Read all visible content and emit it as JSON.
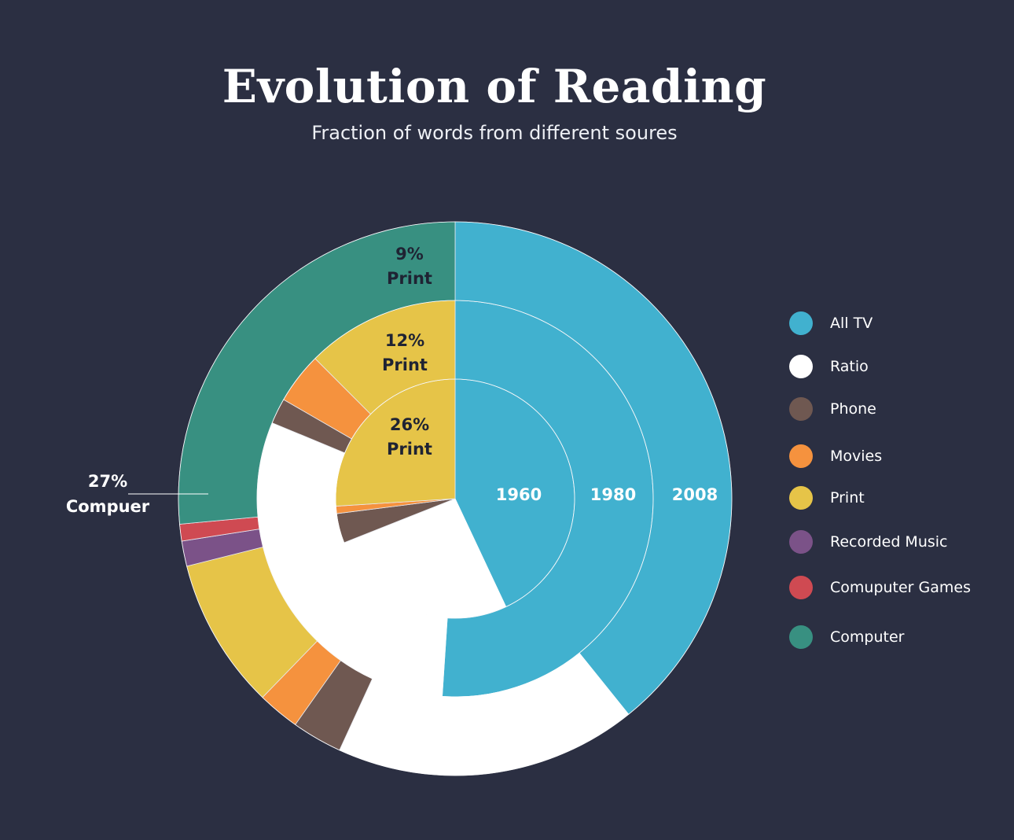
{
  "title": "Evolution of Reading",
  "subtitle": "Fraction of words from different soures",
  "legend": [
    {
      "label": "All TV",
      "color": "#41b1cf"
    },
    {
      "label": "Ratio",
      "color": "#ffffff"
    },
    {
      "label": "Phone",
      "color": "#6f5851"
    },
    {
      "label": "Movies",
      "color": "#f5923e"
    },
    {
      "label": "Print",
      "color": "#e6c448"
    },
    {
      "label": "Recorded Music",
      "color": "#7b5288"
    },
    {
      "label": "Comuputer Games",
      "color": "#cf4a52"
    },
    {
      "label": "Computer",
      "color": "#389081"
    }
  ],
  "chart_data": {
    "type": "pie",
    "subtype": "nested-donut",
    "categories": [
      "All TV",
      "Ratio",
      "Phone",
      "Movies",
      "Print",
      "Recorded Music",
      "Comuputer Games",
      "Computer"
    ],
    "series": [
      {
        "name": "1960",
        "values": [
          43,
          26,
          4,
          1,
          26,
          0,
          0,
          0
        ]
      },
      {
        "name": "1980",
        "values": [
          49,
          29,
          2,
          4,
          12,
          0,
          0,
          0
        ]
      },
      {
        "name": "2008",
        "values": [
          40,
          18,
          3,
          2.5,
          9,
          1.5,
          1,
          27
        ]
      }
    ],
    "data_labels": [
      {
        "series": "1960",
        "category": "Print",
        "value": "26%",
        "text": "Print"
      },
      {
        "series": "1980",
        "category": "Print",
        "value": "12%",
        "text": "Print"
      },
      {
        "series": "2008",
        "category": "Print",
        "value": "9%",
        "text": "Print"
      },
      {
        "series": "2008",
        "category": "Computer",
        "value": "27%",
        "text": "Compuer"
      }
    ],
    "legend_position": "right"
  }
}
